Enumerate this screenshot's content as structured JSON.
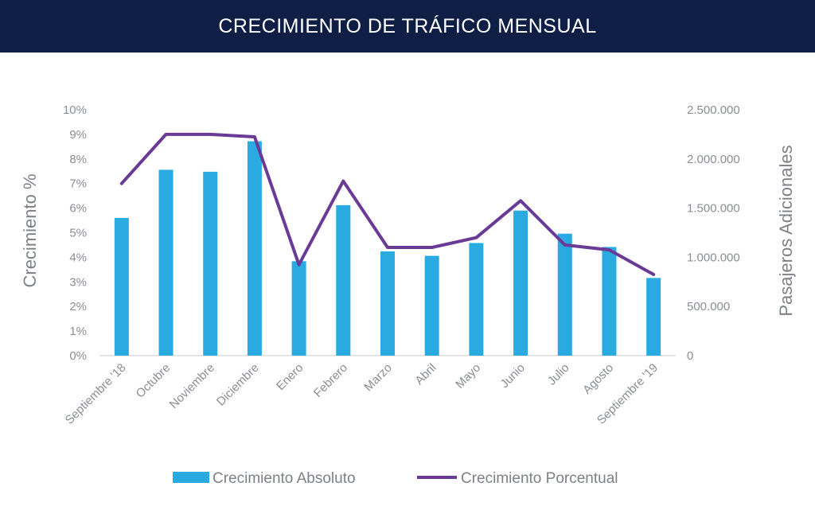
{
  "header": {
    "title": "CRECIMIENTO DE TRÁFICO MENSUAL"
  },
  "colors": {
    "header_bg": "#0f1e45",
    "bar": "#29abe2",
    "line": "#6a3b96",
    "text": "#8a8d93"
  },
  "chart_data": {
    "type": "bar",
    "title": "CRECIMIENTO DE TRÁFICO MENSUAL",
    "categories": [
      "Septiembre '18",
      "Octubre",
      "Noviembre",
      "Diciembre",
      "Enero",
      "Febrero",
      "Marzo",
      "Abril",
      "Mayo",
      "Junio",
      "Julio",
      "Agosto",
      "Septiembre '19"
    ],
    "left_axis": {
      "label": "Crecimiento %",
      "ylim": [
        0,
        10
      ],
      "ticks": [
        "0%",
        "1%",
        "2%",
        "3%",
        "4%",
        "5%",
        "6%",
        "7%",
        "8%",
        "9%",
        "10%"
      ]
    },
    "right_axis": {
      "label": "Pasajeros Adicionales",
      "ylim": [
        0,
        2500000
      ],
      "ticks": [
        "0",
        "500.000",
        "1.000.000",
        "1.500.000",
        "2.000.000",
        "2.500.000"
      ]
    },
    "series": [
      {
        "name": "Crecimiento Absoluto",
        "type": "bar",
        "axis": "right",
        "color": "#29abe2",
        "values": [
          1400000,
          1890000,
          1870000,
          2180000,
          960000,
          1530000,
          1060000,
          1015000,
          1145000,
          1475000,
          1240000,
          1105000,
          790000
        ]
      },
      {
        "name": "Crecimiento Porcentual",
        "type": "line",
        "axis": "left",
        "color": "#6a3b96",
        "values": [
          7.0,
          9.0,
          9.0,
          8.9,
          3.7,
          7.1,
          4.4,
          4.4,
          4.8,
          6.3,
          4.5,
          4.3,
          3.3
        ]
      }
    ],
    "grid": false,
    "legend_position": "bottom"
  }
}
